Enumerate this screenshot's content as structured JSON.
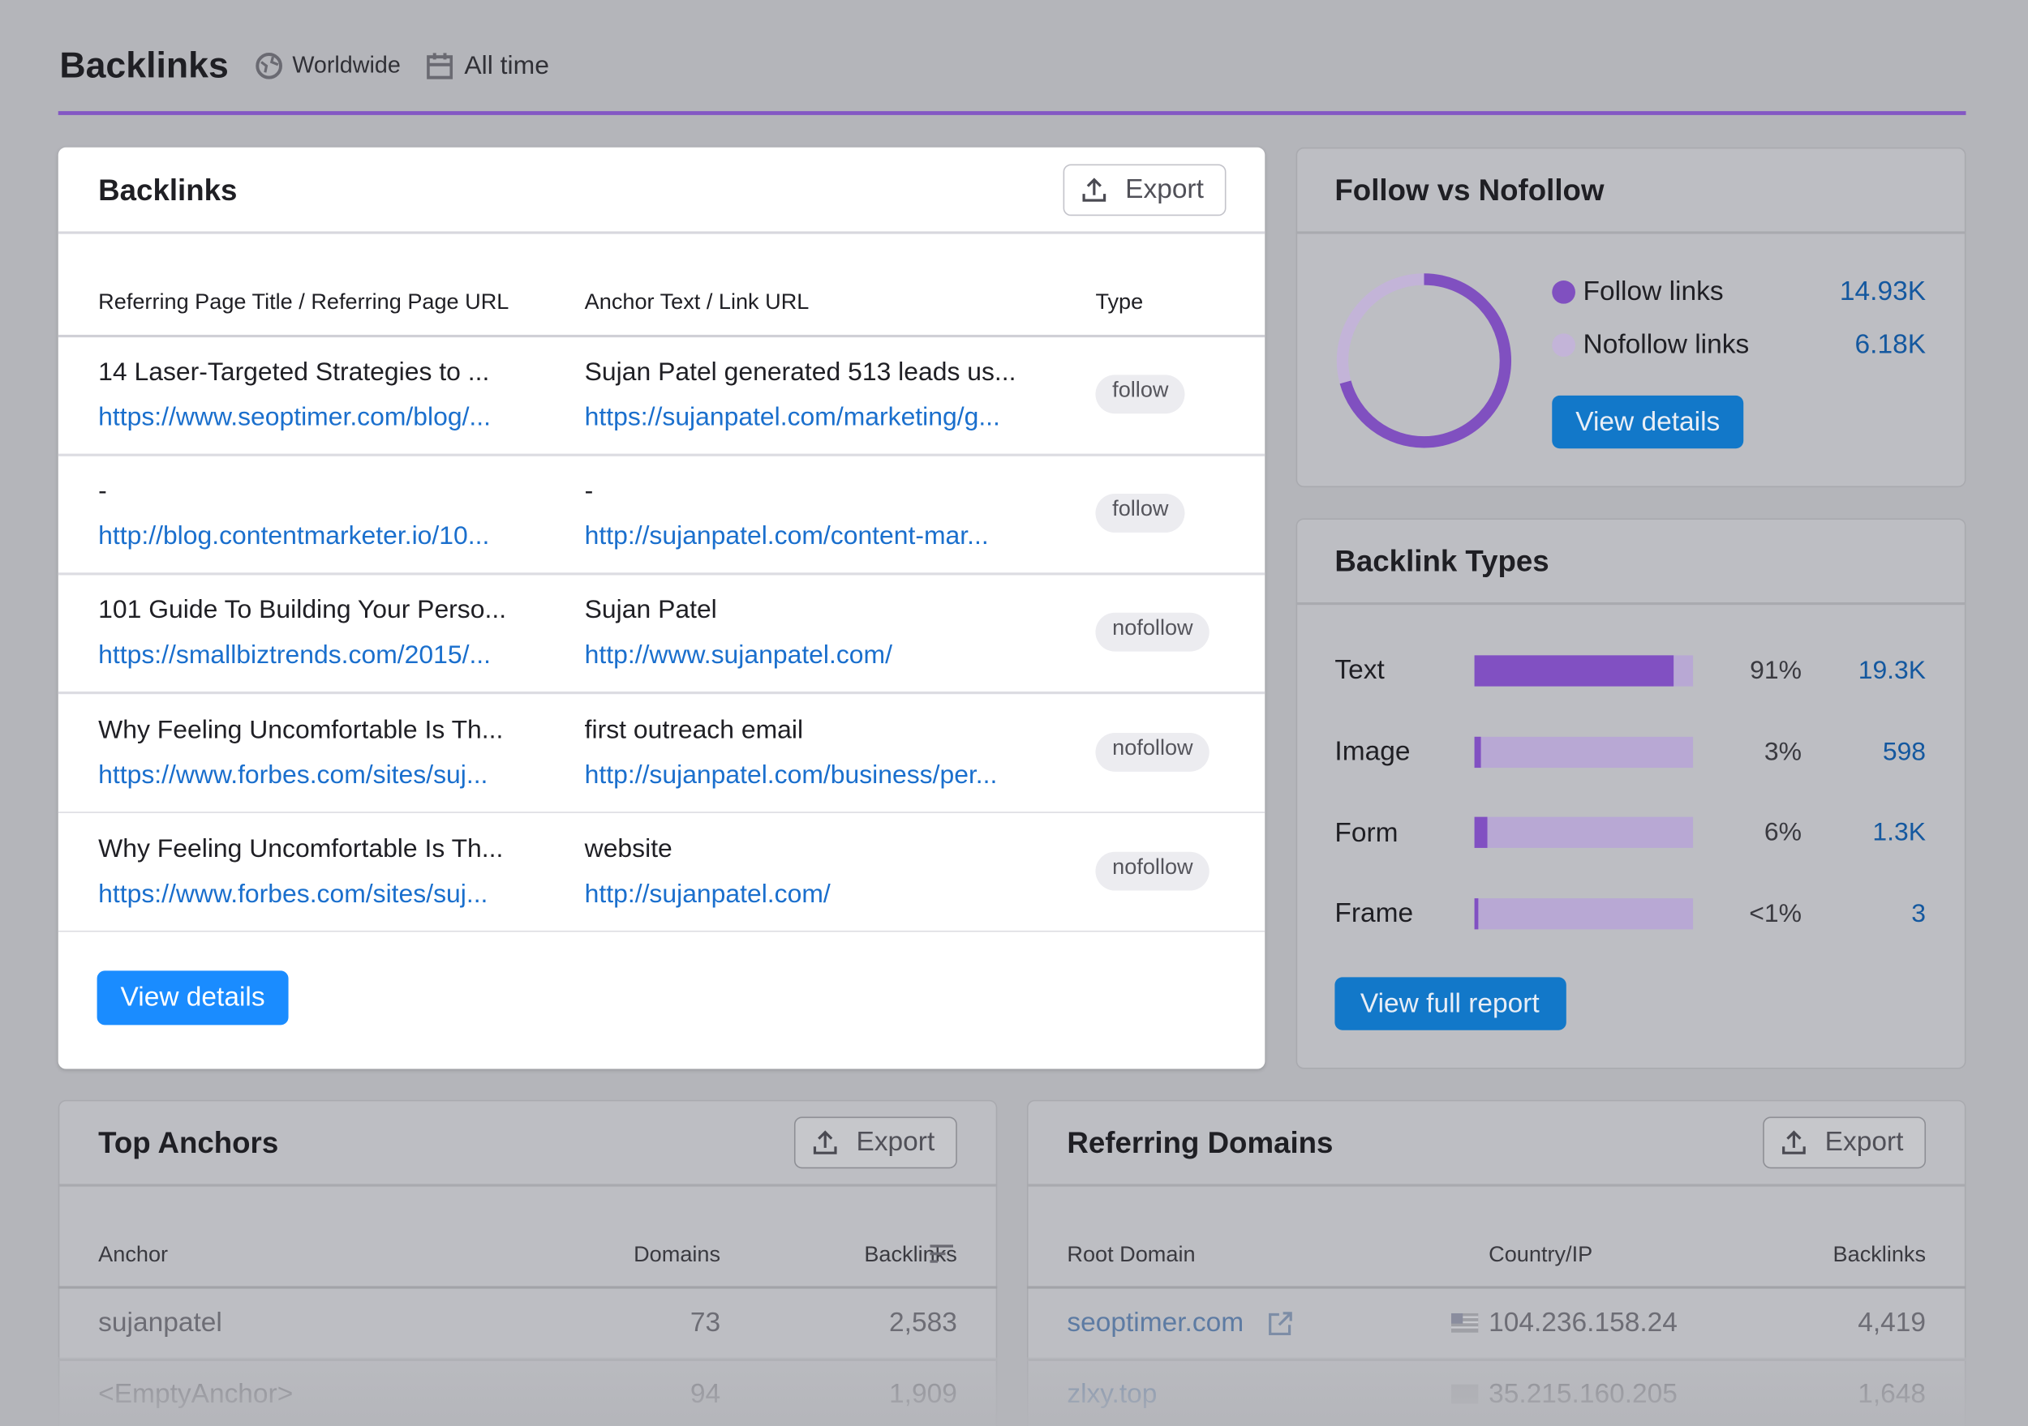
{
  "header": {
    "title": "Backlinks",
    "location": "Worldwide",
    "period": "All time"
  },
  "backlinks": {
    "title": "Backlinks",
    "export": "Export",
    "columns": [
      "Referring Page Title / Referring Page URL",
      "Anchor Text / Link URL",
      "Type"
    ],
    "rows": [
      {
        "title": "14 Laser-Targeted Strategies to ...",
        "url": "https://www.seoptimer.com/blog/...",
        "anchor": "Sujan Patel generated 513 leads us...",
        "link": "https://sujanpatel.com/marketing/g...",
        "type": "follow"
      },
      {
        "title": "-",
        "url": "http://blog.contentmarketer.io/10...",
        "anchor": "-",
        "link": "http://sujanpatel.com/content-mar...",
        "type": "follow"
      },
      {
        "title": "101 Guide To Building Your Perso...",
        "url": "https://smallbiztrends.com/2015/...",
        "anchor": "Sujan Patel",
        "link": "http://www.sujanpatel.com/",
        "type": "nofollow"
      },
      {
        "title": "Why Feeling Uncomfortable Is Th...",
        "url": "https://www.forbes.com/sites/suj...",
        "anchor": "first outreach email",
        "link": "http://sujanpatel.com/business/per...",
        "type": "nofollow"
      },
      {
        "title": "Why Feeling Uncomfortable Is Th...",
        "url": "https://www.forbes.com/sites/suj...",
        "anchor": "website",
        "link": "http://sujanpatel.com/",
        "type": "nofollow"
      }
    ],
    "button": "View details"
  },
  "follow": {
    "title": "Follow vs Nofollow",
    "items": [
      {
        "name": "Follow links",
        "value": 14930,
        "label": "14.93K"
      },
      {
        "name": "Nofollow links",
        "value": 6180,
        "label": "6.18K"
      }
    ],
    "button": "View details"
  },
  "types": {
    "title": "Backlink Types",
    "rows": [
      {
        "name": "Text",
        "share": 91,
        "share_label": "91%",
        "count": 19300,
        "count_label": "19.3K"
      },
      {
        "name": "Image",
        "share": 3,
        "share_label": "3%",
        "count": 598
      },
      {
        "name": "Form",
        "share": 6,
        "share_label": "6%",
        "count": 1300,
        "count_label": "1.3K"
      },
      {
        "name": "Frame",
        "share": 0.2,
        "share_label": "<1%",
        "count": 3
      }
    ],
    "button": "View full report"
  },
  "anchors": {
    "title": "Top Anchors",
    "export": "Export",
    "columns": [
      "Anchor",
      "Domains",
      "Backlinks"
    ],
    "rows": [
      [
        "sujanpatel",
        "73",
        "2,583"
      ],
      [
        "<EmptyAnchor>",
        "94",
        "1,909"
      ]
    ]
  },
  "domains": {
    "title": "Referring Domains",
    "export": "Export",
    "columns": [
      "Root Domain",
      "Country/IP",
      "Backlinks"
    ],
    "rows": [
      [
        "seoptimer.com",
        "104.236.158.24",
        "4,419"
      ],
      [
        "zlxy.top",
        "35.215.160.205",
        "1,648"
      ]
    ]
  }
}
